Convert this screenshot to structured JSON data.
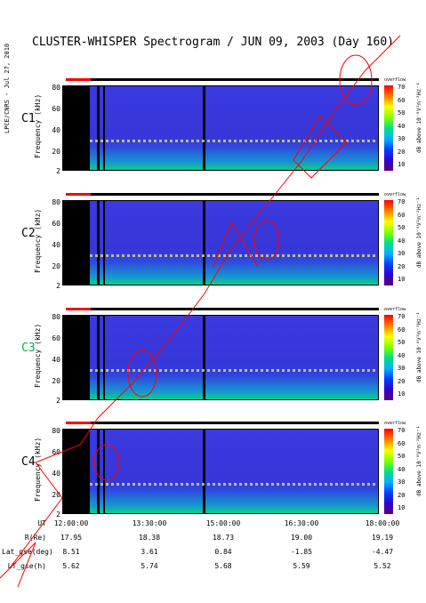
{
  "title": "CLUSTER-WHISPER Spectrogram / JUN 09, 2003 (Day 160)",
  "vertical_label": "LPCE/CNRS - Jul 27, 2010",
  "colorbar": {
    "top_label": "overflow",
    "ticks": [
      "70",
      "60",
      "50",
      "40",
      "30",
      "20",
      "10"
    ],
    "unit": "dB above 10⁻⁸V²m⁻²Hz⁻¹"
  },
  "chart_data": {
    "type": "heatmap",
    "ylabel": "Frequency (kHz)",
    "yticks": [
      "80",
      "60",
      "40",
      "20",
      "2"
    ],
    "ylim": [
      2,
      80
    ],
    "panels": [
      {
        "name": "C1",
        "color": "#000000"
      },
      {
        "name": "C2",
        "color": "#000000"
      },
      {
        "name": "C3",
        "color": "#00b050"
      },
      {
        "name": "C4",
        "color": "#000000"
      }
    ],
    "x_ticks": [
      "12:00:00",
      "13:30:00",
      "15:00:00",
      "16:30:00",
      "18:00:00"
    ],
    "ephemeris": [
      {
        "label": "UT",
        "values": [
          "12:00:00",
          "13:30:00",
          "15:00:00",
          "16:30:00",
          "18:00:00"
        ]
      },
      {
        "label": "R(Re)",
        "values": [
          "17.95",
          "18.38",
          "18.73",
          "19.00",
          "19.19"
        ]
      },
      {
        "label": "Lat_gse(deg)",
        "values": [
          "8.51",
          "3.61",
          "0.84",
          "-1.85",
          "-4.47"
        ]
      },
      {
        "label": "LT_gse(h)",
        "values": [
          "5.62",
          "5.74",
          "5.68",
          "5.59",
          "5.52"
        ]
      }
    ],
    "colorscale": {
      "min": 10,
      "max": 70,
      "unit": "dB"
    }
  }
}
